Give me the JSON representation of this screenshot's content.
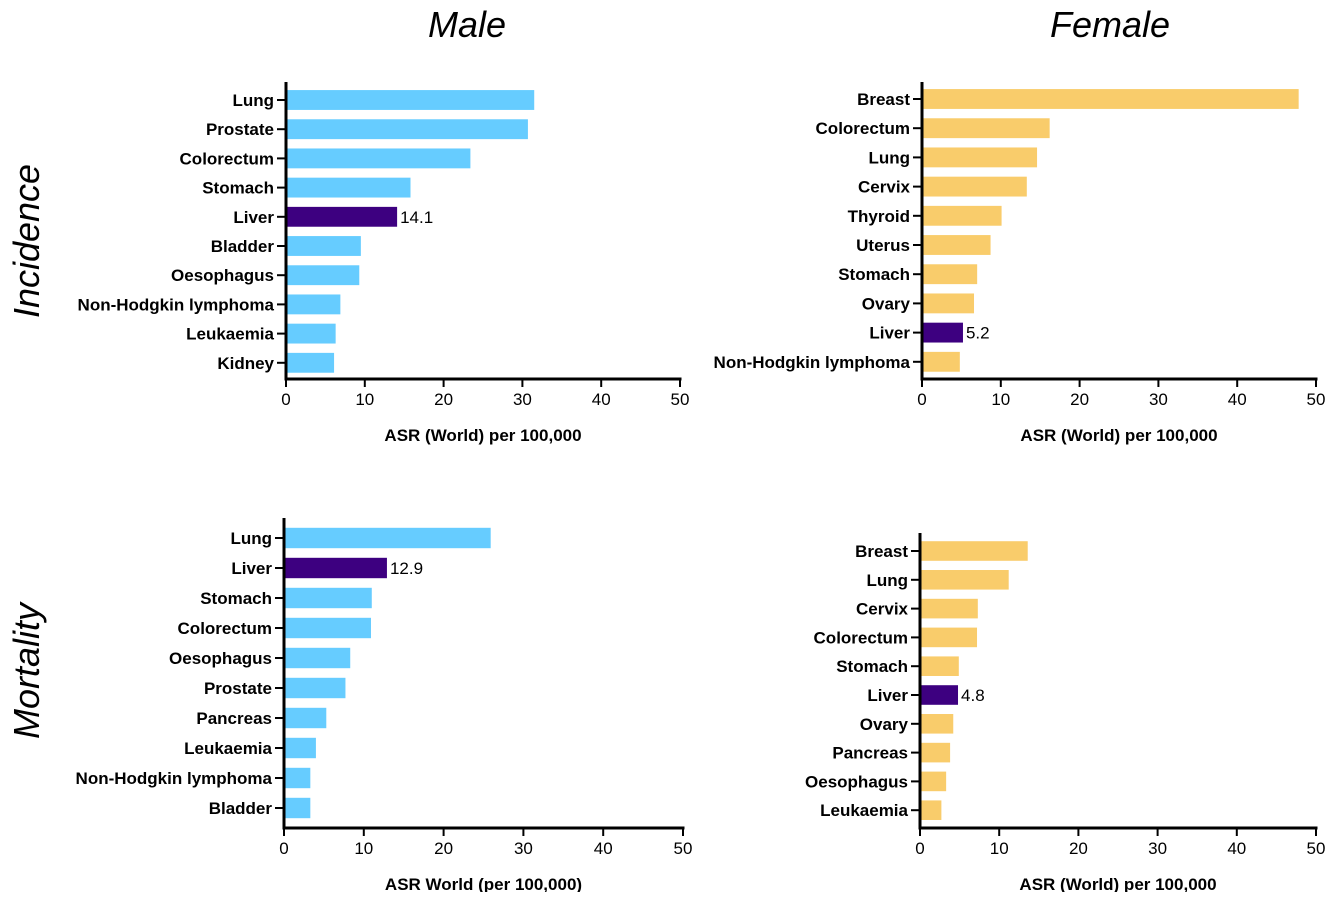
{
  "figure": {
    "column_titles": [
      "Male",
      "Female"
    ],
    "row_titles": [
      "Incidence",
      "Mortality"
    ]
  },
  "colors": {
    "male_bar": "#66CCFF",
    "female_bar": "#F9CC6B",
    "liver_highlight": "#3D0080"
  },
  "chart_data": [
    {
      "type": "bar",
      "orientation": "horizontal",
      "panel": "Male Incidence",
      "categories": [
        "Lung",
        "Prostate",
        "Colorectum",
        "Stomach",
        "Liver",
        "Bladder",
        "Oesophagus",
        "Non-Hodgkin lymphoma",
        "Leukaemia",
        "Kidney"
      ],
      "values": [
        31.5,
        30.7,
        23.4,
        15.8,
        14.1,
        9.5,
        9.3,
        6.9,
        6.3,
        6.1
      ],
      "highlight": "Liver",
      "highlight_label": "14.1",
      "xlabel": "ASR (World) per 100,000",
      "xlim": [
        0,
        50
      ],
      "xticks": [
        "0",
        "10",
        "20",
        "30",
        "40",
        "50"
      ],
      "color": "#66CCFF"
    },
    {
      "type": "bar",
      "orientation": "horizontal",
      "panel": "Female Incidence",
      "categories": [
        "Breast",
        "Colorectum",
        "Lung",
        "Cervix",
        "Thyroid",
        "Uterus",
        "Stomach",
        "Ovary",
        "Liver",
        "Non-Hodgkin lymphoma"
      ],
      "values": [
        47.8,
        16.2,
        14.6,
        13.3,
        10.1,
        8.7,
        7.0,
        6.6,
        5.2,
        4.8
      ],
      "highlight": "Liver",
      "highlight_label": "5.2",
      "xlabel": "ASR (World) per 100,000",
      "xlim": [
        0,
        50
      ],
      "xticks": [
        "0",
        "10",
        "20",
        "30",
        "40",
        "50"
      ],
      "color": "#F9CC6B"
    },
    {
      "type": "bar",
      "orientation": "horizontal",
      "panel": "Male Mortality",
      "categories": [
        "Lung",
        "Liver",
        "Stomach",
        "Colorectum",
        "Oesophagus",
        "Prostate",
        "Pancreas",
        "Leukaemia",
        "Non-Hodgkin lymphoma",
        "Bladder"
      ],
      "values": [
        25.9,
        12.9,
        11.0,
        10.9,
        8.3,
        7.7,
        5.3,
        4.0,
        3.3,
        3.3
      ],
      "highlight": "Liver",
      "highlight_label": "12.9",
      "xlabel": "ASR World (per 100,000)",
      "xlim": [
        0,
        50
      ],
      "xticks": [
        "0",
        "10",
        "20",
        "30",
        "40",
        "50"
      ],
      "color": "#66CCFF"
    },
    {
      "type": "bar",
      "orientation": "horizontal",
      "panel": "Female Mortality",
      "categories": [
        "Breast",
        "Lung",
        "Cervix",
        "Colorectum",
        "Stomach",
        "Liver",
        "Ovary",
        "Pancreas",
        "Oesophagus",
        "Leukaemia"
      ],
      "values": [
        13.6,
        11.2,
        7.3,
        7.2,
        4.9,
        4.8,
        4.2,
        3.8,
        3.3,
        2.7
      ],
      "highlight": "Liver",
      "highlight_label": "4.8",
      "xlabel": "ASR (World) per 100,000",
      "xlim": [
        0,
        50
      ],
      "xticks": [
        "0",
        "10",
        "20",
        "30",
        "40",
        "50"
      ],
      "color": "#F9CC6B"
    }
  ]
}
